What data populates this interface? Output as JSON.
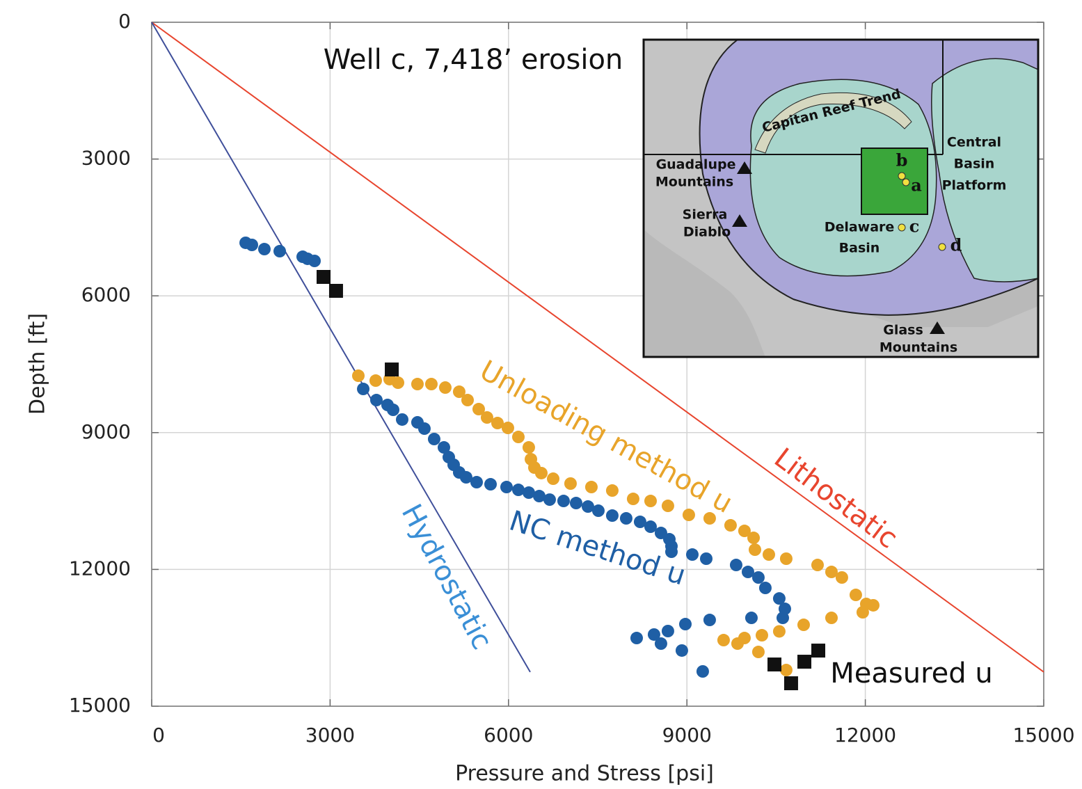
{
  "chart_data": {
    "type": "scatter",
    "xlabel": "Pressure and Stress [psi]",
    "ylabel": "Depth [ft]",
    "xlim": [
      0,
      15000
    ],
    "ylim": [
      0,
      15000
    ],
    "y_inverted": true,
    "xticks": [
      0,
      3000,
      6000,
      9000,
      12000,
      15000
    ],
    "yticks": [
      0,
      3000,
      6000,
      9000,
      12000,
      15000
    ],
    "grid": true,
    "annotations": [
      "Well c, 7,418’ erosion"
    ],
    "series": [
      {
        "name": "Lithostatic",
        "color": "#e8452e",
        "marker": "line",
        "x": [
          0,
          15000
        ],
        "values": [
          0,
          14250
        ]
      },
      {
        "name": "Hydrostatic",
        "color": "#3f4f9a",
        "label_color": "#3a8fd6",
        "marker": "line",
        "x": [
          0,
          6365
        ],
        "values": [
          0,
          14250
        ]
      },
      {
        "name": "Unloading method u",
        "color": "#e8a42a",
        "marker": "circle",
        "x": [
          3475,
          3767,
          4001,
          4142,
          4469,
          4703,
          4937,
          5171,
          5312,
          5499,
          5639,
          5815,
          5990,
          6166,
          6341,
          6377,
          6435,
          6552,
          6751,
          7043,
          7394,
          7745,
          8096,
          8389,
          8681,
          9032,
          9383,
          9734,
          9968,
          10121,
          10144,
          10378,
          10670,
          11197,
          11431,
          11606,
          11840,
          12016,
          12133,
          11957,
          11431,
          10963,
          10553,
          10261,
          9968,
          9617,
          9851,
          10202,
          10670
        ],
        "values": [
          7752,
          7859,
          7828,
          7905,
          7935,
          7935,
          8012,
          8103,
          8286,
          8485,
          8668,
          8790,
          8897,
          9095,
          9324,
          9583,
          9766,
          9888,
          10011,
          10117,
          10194,
          10270,
          10453,
          10499,
          10606,
          10804,
          10880,
          11033,
          11155,
          11308,
          11567,
          11674,
          11765,
          11903,
          12055,
          12177,
          12559,
          12757,
          12787,
          12940,
          13063,
          13215,
          13359,
          13444,
          13505,
          13551,
          13627,
          13810,
          14207
        ]
      },
      {
        "name": "NC method u",
        "color": "#1f5fa5",
        "marker": "circle",
        "x": [
          1580,
          1685,
          1895,
          2153,
          2539,
          2621,
          2738,
          3557,
          3779,
          3966,
          4060,
          4212,
          4469,
          4586,
          4750,
          4914,
          4996,
          5078,
          5171,
          5288,
          5464,
          5698,
          5967,
          6166,
          6341,
          6517,
          6692,
          6926,
          7137,
          7336,
          7511,
          7745,
          7979,
          8213,
          8389,
          8564,
          8705,
          8740,
          8740,
          9091,
          9325,
          9828,
          10027,
          10202,
          10319,
          10553,
          10647,
          10612,
          10085,
          9383,
          8974,
          8681,
          8447,
          8155,
          8564,
          8915,
          9266
        ],
        "values": [
          4837,
          4883,
          4975,
          5021,
          5143,
          5188,
          5234,
          8042,
          8286,
          8393,
          8500,
          8713,
          8775,
          8912,
          9141,
          9324,
          9538,
          9705,
          9873,
          9980,
          10087,
          10133,
          10194,
          10255,
          10316,
          10392,
          10469,
          10499,
          10545,
          10621,
          10713,
          10819,
          10880,
          10957,
          11064,
          11201,
          11338,
          11491,
          11613,
          11674,
          11765,
          11903,
          12055,
          12177,
          12406,
          12637,
          12864,
          13063,
          13063,
          13108,
          13200,
          13352,
          13428,
          13505,
          13627,
          13779,
          14237
        ]
      },
      {
        "name": "Measured u",
        "color": "#111111",
        "label_color": "#111111",
        "marker": "square",
        "x": [
          2890,
          3100,
          4037,
          10472,
          10752,
          10975,
          11209
        ],
        "values": [
          5585,
          5890,
          7615,
          14085,
          14497,
          14024,
          13780
        ]
      }
    ]
  },
  "inset_map": {
    "labels": [
      "Capitan Reef Trend",
      "Central",
      "Basin",
      "Platform",
      "Guadalupe",
      "Mountains",
      "Sierra",
      "Diablo",
      "Delaware",
      "Basin",
      "Glass",
      "Mountains",
      "b",
      "a",
      "c",
      "d"
    ]
  }
}
